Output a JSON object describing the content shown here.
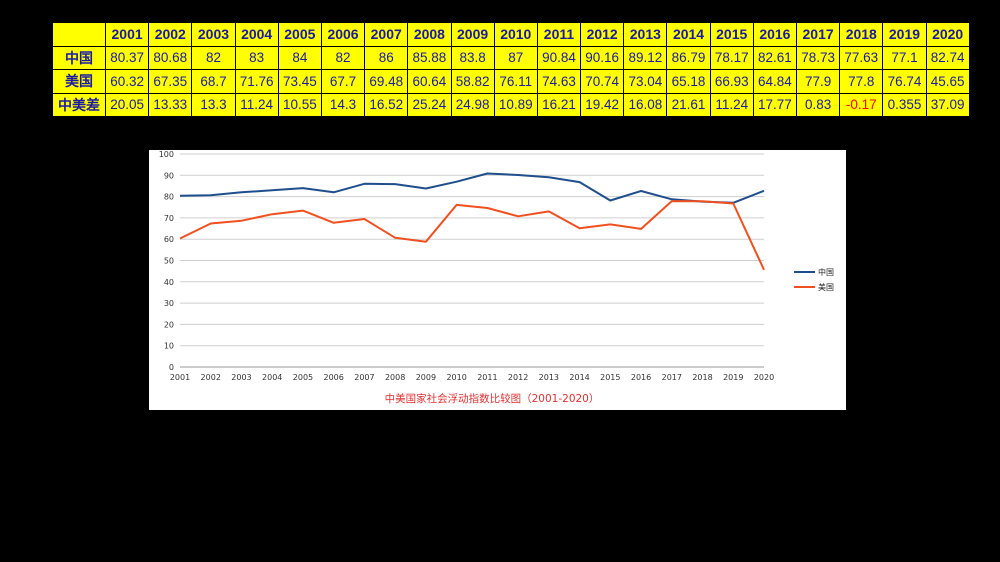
{
  "table": {
    "years": [
      "2001",
      "2002",
      "2003",
      "2004",
      "2005",
      "2006",
      "2007",
      "2008",
      "2009",
      "2010",
      "2011",
      "2012",
      "2013",
      "2014",
      "2015",
      "2016",
      "2017",
      "2018",
      "2019",
      "2020"
    ],
    "rows": [
      {
        "label": "中国",
        "values": [
          "80.37",
          "80.68",
          "82",
          "83",
          "84",
          "82",
          "86",
          "85.88",
          "83.8",
          "87",
          "90.84",
          "90.16",
          "89.12",
          "86.79",
          "78.17",
          "82.61",
          "78.73",
          "77.63",
          "77.1",
          "82.74"
        ]
      },
      {
        "label": "美国",
        "values": [
          "60.32",
          "67.35",
          "68.7",
          "71.76",
          "73.45",
          "67.7",
          "69.48",
          "60.64",
          "58.82",
          "76.11",
          "74.63",
          "70.74",
          "73.04",
          "65.18",
          "66.93",
          "64.84",
          "77.9",
          "77.8",
          "76.74",
          "45.65"
        ]
      },
      {
        "label": "中美差",
        "values": [
          "20.05",
          "13.33",
          "13.3",
          "11.24",
          "10.55",
          "14.3",
          "16.52",
          "25.24",
          "24.98",
          "10.89",
          "16.21",
          "19.42",
          "16.08",
          "21.61",
          "11.24",
          "17.77",
          "0.83",
          "-0.17",
          "0.355",
          "37.09"
        ]
      }
    ]
  },
  "chart_data": {
    "type": "line",
    "title": "中美国家社会浮动指数比较图（2001-2020）",
    "x": [
      2001,
      2002,
      2003,
      2004,
      2005,
      2006,
      2007,
      2008,
      2009,
      2010,
      2011,
      2012,
      2013,
      2014,
      2015,
      2016,
      2017,
      2018,
      2019,
      2020
    ],
    "series": [
      {
        "name": "中国",
        "color": "#1f4e8c",
        "values": [
          80.37,
          80.68,
          82,
          83,
          84,
          82,
          86,
          85.88,
          83.8,
          87,
          90.84,
          90.16,
          89.12,
          86.79,
          78.17,
          82.61,
          78.73,
          77.63,
          77.1,
          82.74
        ]
      },
      {
        "name": "美国",
        "color": "#f05020",
        "values": [
          60.32,
          67.35,
          68.7,
          71.76,
          73.45,
          67.7,
          69.48,
          60.64,
          58.82,
          76.11,
          74.63,
          70.74,
          73.04,
          65.18,
          66.93,
          64.84,
          77.9,
          77.8,
          76.74,
          45.65
        ]
      }
    ],
    "ylim": [
      0,
      100
    ],
    "yticks": [
      0,
      10,
      20,
      30,
      40,
      50,
      60,
      70,
      80,
      90,
      100
    ],
    "grid": true,
    "legend": "right"
  }
}
